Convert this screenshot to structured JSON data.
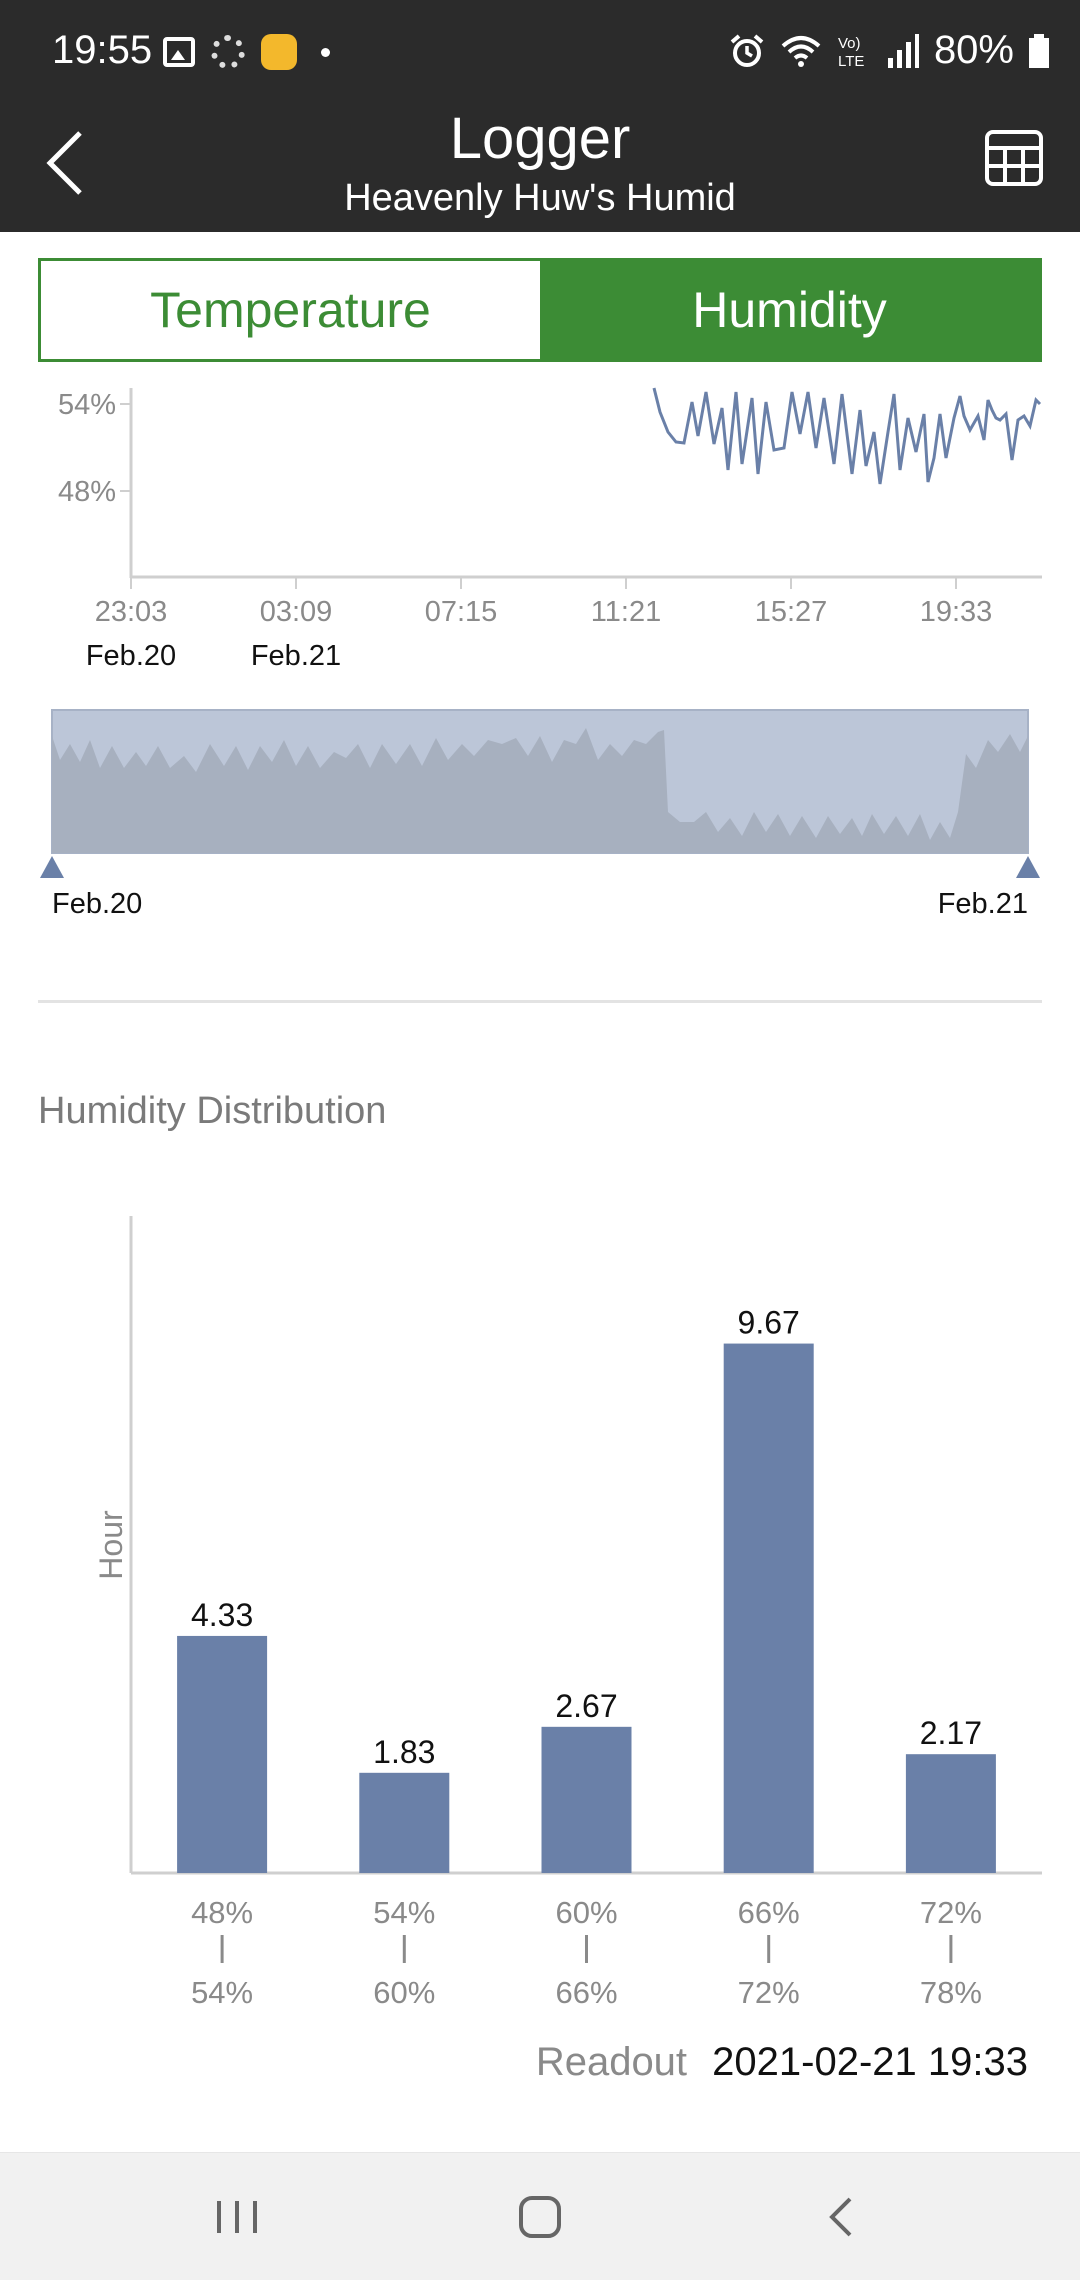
{
  "status_bar": {
    "time": "19:55",
    "battery": "80%",
    "left_icons": [
      "gallery-icon",
      "sync-icon",
      "app-notification-icon",
      "dot-icon"
    ],
    "right_icons": [
      "alarm-icon",
      "wifi-icon",
      "volte-icon",
      "signal-icon",
      "battery-icon"
    ]
  },
  "header": {
    "title": "Logger",
    "subtitle": "Heavenly Huw's Humid",
    "back_icon": "chevron-left-icon",
    "table_icon": "table-grid-icon"
  },
  "tabs": [
    {
      "label": "Temperature",
      "active": false
    },
    {
      "label": "Humidity",
      "active": true
    }
  ],
  "colors": {
    "accent_green": "#3c8c35",
    "series_blue": "#6a80a8",
    "header_dark": "#2b2b2b"
  },
  "humidity_chart": {
    "y_ticks": [
      "54%",
      "48%"
    ],
    "x_ticks": [
      "23:03",
      "03:09",
      "07:15",
      "11:21",
      "15:27",
      "19:33"
    ],
    "date_labels": [
      {
        "label": "Feb.20",
        "under": "23:03"
      },
      {
        "label": "Feb.21",
        "under": "03:09"
      }
    ],
    "range_start_label": "Feb.20",
    "range_end_label": "Feb.21"
  },
  "distribution": {
    "title": "Humidity Distribution",
    "ylabel": "Hour"
  },
  "chart_data": {
    "type": "bar",
    "categories": [
      "48% | 54%",
      "54% | 60%",
      "60% | 66%",
      "66% | 72%",
      "72% | 78%"
    ],
    "category_top": [
      "48%",
      "54%",
      "60%",
      "66%",
      "72%"
    ],
    "category_bottom": [
      "54%",
      "60%",
      "66%",
      "72%",
      "78%"
    ],
    "values": [
      4.33,
      1.83,
      2.67,
      9.67,
      2.17
    ],
    "value_labels": [
      "4.33",
      "1.83",
      "2.67",
      "9.67",
      "2.17"
    ],
    "ylabel": "Hour",
    "ylim": [
      0,
      12
    ]
  },
  "readout": {
    "label": "Readout",
    "value": "2021-02-21 19:33"
  },
  "navbar": {
    "recent_icon": "recent-apps-icon",
    "home_icon": "home-icon",
    "back_icon": "back-icon"
  }
}
